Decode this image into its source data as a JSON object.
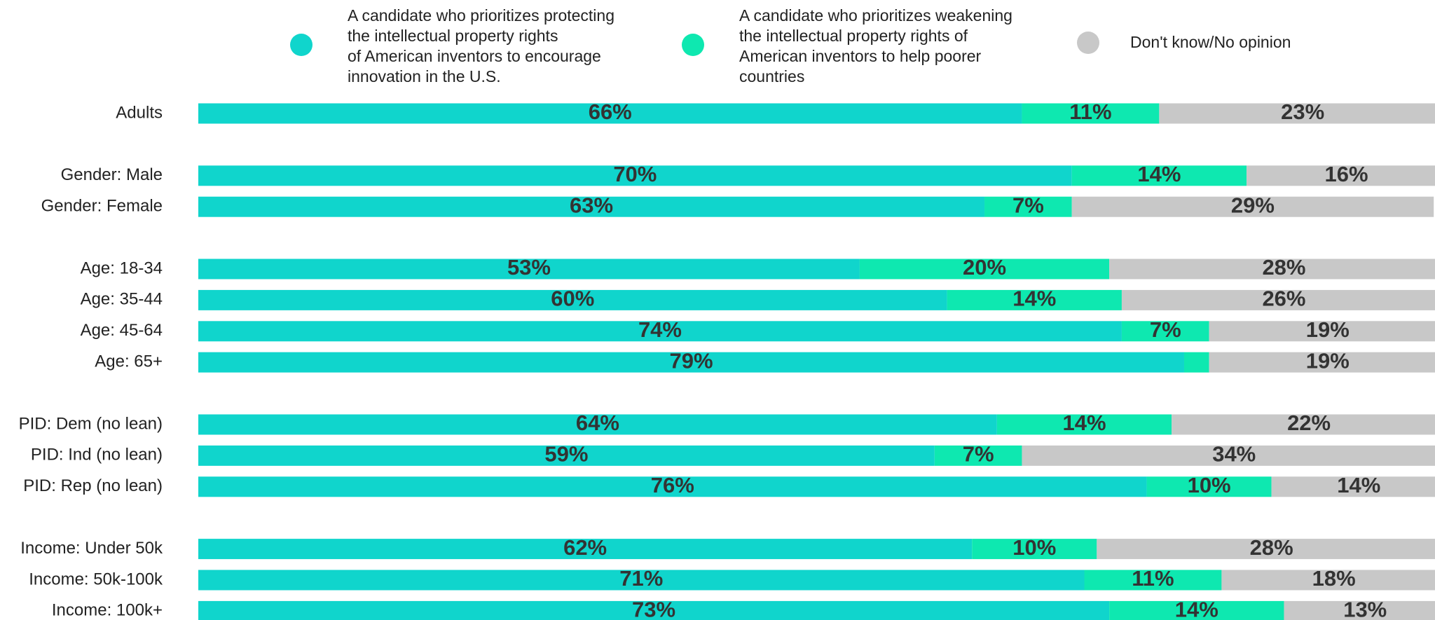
{
  "chart_data": {
    "type": "stacked-bar",
    "orientation": "horizontal",
    "categories": [
      "Adults",
      null,
      "Gender: Male",
      "Gender: Female",
      null,
      "Age: 18-34",
      "Age: 35-44",
      "Age: 45-64",
      "Age: 65+",
      null,
      "PID: Dem (no lean)",
      "PID: Ind (no lean)",
      "PID: Rep (no lean)",
      null,
      "Income: Under 50k",
      "Income: 50k-100k",
      "Income: 100k+"
    ],
    "xlim": [
      0,
      100
    ],
    "series": [
      {
        "name": "A candidate who prioritizes protecting\nthe intellectual property rights\nof American inventors to encourage\ninnovation in the U.S.",
        "color": "#10d5cc",
        "values": [
          66,
          null,
          70,
          63,
          null,
          53,
          60,
          74,
          79,
          null,
          64,
          59,
          76,
          null,
          62,
          71,
          73
        ],
        "value_labels": [
          "66%",
          null,
          "70%",
          "63%",
          null,
          "53%",
          "60%",
          "74%",
          "79%",
          null,
          "64%",
          "59%",
          "76%",
          null,
          "62%",
          "71%",
          "73%"
        ]
      },
      {
        "name": "A candidate who prioritizes weakening\nthe intellectual property rights of\nAmerican inventors to help poorer\ncountries",
        "color": "#0ee8b0",
        "values": [
          11,
          null,
          14,
          7,
          null,
          20,
          14,
          7,
          2,
          null,
          14,
          7,
          10,
          null,
          10,
          11,
          14
        ],
        "value_labels": [
          "11%",
          null,
          "14%",
          "7%",
          null,
          "20%",
          "14%",
          "7%",
          null,
          null,
          "14%",
          "7%",
          "10%",
          null,
          "10%",
          "11%",
          "14%"
        ]
      },
      {
        "name": "Don't know/No opinion",
        "color": "#c8c8c8",
        "values": [
          23,
          null,
          16,
          29,
          null,
          28,
          26,
          19,
          19,
          null,
          22,
          34,
          14,
          null,
          28,
          18,
          13
        ],
        "value_labels": [
          "23%",
          null,
          "16%",
          "29%",
          null,
          "28%",
          "26%",
          "19%",
          "19%",
          null,
          "22%",
          "34%",
          "14%",
          null,
          "28%",
          "18%",
          "13%"
        ]
      }
    ]
  }
}
